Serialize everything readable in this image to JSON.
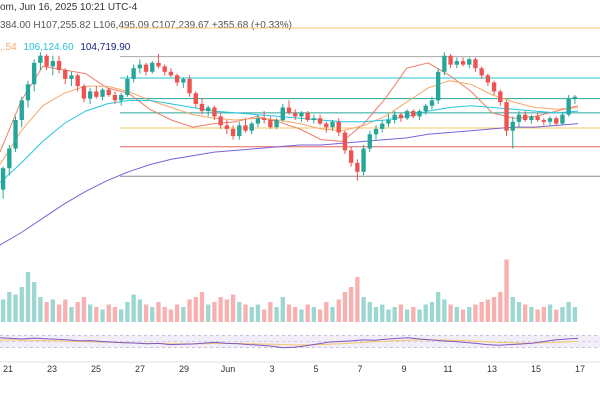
{
  "header": {
    "line1": "om, Jun 16, 2025 10:21 UTC-4",
    "ohlc": "384.00  H107,255.82  L106,495.09  C107,239.67  +355.68 (+0.33%)",
    "ma_prefix": ",.54",
    "ma_values": [
      {
        "text": "106,124.60",
        "color": "#26c6da"
      },
      {
        "text": "104,719.90",
        "color": "#1a237e"
      }
    ]
  },
  "colors": {
    "up": "#26a69a",
    "down": "#ef5350",
    "ma_fast": "#ef7d6b",
    "ma_mid": "#f5a86a",
    "ma_slow": "#26c6da",
    "ma_long": "#7b61d9",
    "rsi": "#7e57c2",
    "rsi_ma": "#f2c96a"
  },
  "chart_data": {
    "type": "candlestick",
    "title": "",
    "xlabel": "",
    "ylabel": "",
    "x_ticks": [
      "21",
      "23",
      "25",
      "27",
      "29",
      "Jun",
      "3",
      "5",
      "7",
      "9",
      "11",
      "13",
      "15",
      "17"
    ],
    "ylim": [
      99000,
      113000
    ],
    "horizontal_levels": [
      {
        "value": 112550,
        "color": "#f2c96a"
      },
      {
        "value": 110950,
        "color": "#aaaaaa"
      },
      {
        "value": 109750,
        "color": "#26c6da"
      },
      {
        "value": 108600,
        "color": "#26a69a"
      },
      {
        "value": 107800,
        "color": "#26a69a"
      },
      {
        "value": 106950,
        "color": "#f2c96a"
      },
      {
        "value": 105900,
        "color": "#e06666"
      },
      {
        "value": 104250,
        "color": "#888888"
      }
    ],
    "candles": [
      [
        103500,
        104800,
        103000,
        104700
      ],
      [
        104700,
        106000,
        104300,
        105800
      ],
      [
        105800,
        107600,
        105600,
        107400
      ],
      [
        107400,
        108700,
        107000,
        108500
      ],
      [
        108500,
        109600,
        108100,
        109400
      ],
      [
        109400,
        110800,
        109000,
        110600
      ],
      [
        110600,
        111200,
        110200,
        111000
      ],
      [
        111000,
        111100,
        110200,
        110400
      ],
      [
        110400,
        111000,
        109900,
        110700
      ],
      [
        110700,
        111000,
        110000,
        110200
      ],
      [
        110200,
        110300,
        109400,
        109700
      ],
      [
        109700,
        110100,
        109300,
        109900
      ],
      [
        109900,
        110000,
        109000,
        109300
      ],
      [
        109300,
        109400,
        108400,
        108600
      ],
      [
        108600,
        109200,
        108300,
        109000
      ],
      [
        109000,
        109300,
        108600,
        108700
      ],
      [
        108700,
        109200,
        108500,
        109100
      ],
      [
        109100,
        109200,
        108700,
        108800
      ],
      [
        108800,
        109000,
        108300,
        108500
      ],
      [
        108500,
        108900,
        108200,
        108800
      ],
      [
        108800,
        109900,
        108700,
        109700
      ],
      [
        109700,
        110500,
        109500,
        110300
      ],
      [
        110300,
        110800,
        110000,
        110500
      ],
      [
        110500,
        110600,
        109900,
        110100
      ],
      [
        110100,
        110700,
        110000,
        110600
      ],
      [
        110600,
        111100,
        110300,
        110400
      ],
      [
        110400,
        110500,
        109900,
        110100
      ],
      [
        110100,
        110300,
        109800,
        109900
      ],
      [
        109900,
        110000,
        109300,
        109500
      ],
      [
        109500,
        109800,
        109200,
        109700
      ],
      [
        109700,
        109900,
        108700,
        108900
      ],
      [
        108900,
        109000,
        108100,
        108300
      ],
      [
        108300,
        108600,
        107700,
        107900
      ],
      [
        107900,
        108200,
        107600,
        108100
      ],
      [
        108100,
        108200,
        107400,
        107600
      ],
      [
        107600,
        107800,
        106900,
        107100
      ],
      [
        107100,
        107400,
        106600,
        106900
      ],
      [
        106900,
        107100,
        106300,
        106500
      ],
      [
        106500,
        107300,
        106300,
        107100
      ],
      [
        107100,
        107500,
        106700,
        106800
      ],
      [
        106800,
        107300,
        106600,
        107200
      ],
      [
        107200,
        107700,
        107000,
        107500
      ],
      [
        107500,
        107900,
        107200,
        107400
      ],
      [
        107400,
        107600,
        106900,
        107000
      ],
      [
        107000,
        107500,
        106900,
        107400
      ],
      [
        107400,
        108300,
        107300,
        108100
      ],
      [
        108100,
        108500,
        107700,
        107800
      ],
      [
        107800,
        108000,
        107400,
        107600
      ],
      [
        107600,
        107900,
        107300,
        107800
      ],
      [
        107800,
        107900,
        107300,
        107400
      ],
      [
        107400,
        107700,
        107200,
        107500
      ],
      [
        107500,
        107700,
        107100,
        107200
      ],
      [
        107200,
        107300,
        106700,
        107000
      ],
      [
        107000,
        107400,
        106800,
        107300
      ],
      [
        107300,
        107500,
        106500,
        106700
      ],
      [
        106700,
        106800,
        105500,
        105700
      ],
      [
        105700,
        105900,
        104800,
        105000
      ],
      [
        105000,
        105200,
        104000,
        104500
      ],
      [
        104500,
        106000,
        104300,
        105800
      ],
      [
        105800,
        106800,
        105600,
        106600
      ],
      [
        106600,
        107100,
        106300,
        106900
      ],
      [
        106900,
        107400,
        106700,
        107200
      ],
      [
        107200,
        107700,
        107000,
        107400
      ],
      [
        107400,
        107900,
        107200,
        107700
      ],
      [
        107700,
        107800,
        107300,
        107500
      ],
      [
        107500,
        108000,
        107400,
        107900
      ],
      [
        107900,
        108000,
        107500,
        107600
      ],
      [
        107600,
        108000,
        107400,
        107900
      ],
      [
        107900,
        108300,
        107700,
        108200
      ],
      [
        108200,
        108700,
        108000,
        108500
      ],
      [
        108500,
        110300,
        108300,
        110100
      ],
      [
        110100,
        111200,
        109900,
        111000
      ],
      [
        111000,
        111100,
        110300,
        110500
      ],
      [
        110500,
        110900,
        110300,
        110700
      ],
      [
        110700,
        110900,
        110400,
        110500
      ],
      [
        110500,
        110900,
        110300,
        110800
      ],
      [
        110800,
        110900,
        110100,
        110300
      ],
      [
        110300,
        110400,
        109700,
        109900
      ],
      [
        109900,
        110000,
        109300,
        109500
      ],
      [
        109500,
        109600,
        108800,
        109000
      ],
      [
        109000,
        109100,
        108200,
        108400
      ],
      [
        108400,
        108500,
        106500,
        106800
      ],
      [
        106800,
        107600,
        105800,
        107300
      ],
      [
        107300,
        107900,
        107000,
        107700
      ],
      [
        107700,
        107900,
        107300,
        107400
      ],
      [
        107400,
        107700,
        107200,
        107600
      ],
      [
        107600,
        107800,
        107300,
        107400
      ],
      [
        107400,
        107500,
        107100,
        107300
      ],
      [
        107300,
        107600,
        107100,
        107500
      ],
      [
        107500,
        107600,
        107100,
        107200
      ],
      [
        107200,
        107800,
        107100,
        107700
      ],
      [
        107700,
        108800,
        107600,
        108600
      ],
      [
        108600,
        108800,
        108300,
        108700
      ]
    ],
    "moving_averages": [
      {
        "name": "",
        "color": "#ef7d6b",
        "values": [
          105600,
          108500,
          110400,
          110200,
          110000,
          109200,
          108900,
          108000,
          107400,
          107000,
          107200,
          107300,
          107600,
          107300,
          106900,
          106300,
          106200,
          107200,
          108600,
          110300,
          110600,
          109900,
          109000,
          107800,
          107500,
          107600,
          107900,
          108200
        ]
      },
      {
        "name": "",
        "color": "#f5a86a",
        "values": [
          104900,
          106800,
          108200,
          108900,
          109300,
          109300,
          109000,
          108500,
          108100,
          107700,
          107500,
          107400,
          107500,
          107400,
          107200,
          106900,
          106800,
          107100,
          107600,
          108400,
          109200,
          109600,
          109400,
          108800,
          108400,
          108100,
          108000,
          108100
        ]
      },
      {
        "name": "",
        "color": "#26c6da",
        "values": [
          103900,
          105000,
          106200,
          107200,
          107900,
          108300,
          108500,
          108500,
          108300,
          108100,
          107900,
          107800,
          107700,
          107600,
          107500,
          107400,
          107300,
          107300,
          107400,
          107600,
          107900,
          108100,
          108200,
          108100,
          108000,
          107900,
          107800,
          107900
        ]
      },
      {
        "name": "",
        "color": "#7b61d9",
        "values": [
          100400,
          101100,
          101900,
          102700,
          103400,
          104000,
          104500,
          104900,
          105200,
          105400,
          105600,
          105700,
          105800,
          105900,
          106000,
          106000,
          106100,
          106200,
          106300,
          106400,
          106600,
          106700,
          106800,
          106900,
          107000,
          107000,
          107100,
          107200
        ]
      }
    ],
    "volume": [
      9,
      12,
      11,
      14,
      20,
      16,
      10,
      8,
      9,
      7,
      9,
      6,
      8,
      10,
      7,
      6,
      5,
      7,
      6,
      5,
      8,
      11,
      9,
      7,
      6,
      8,
      6,
      5,
      7,
      6,
      9,
      10,
      12,
      7,
      8,
      10,
      9,
      11,
      8,
      7,
      6,
      7,
      5,
      8,
      6,
      10,
      7,
      6,
      5,
      7,
      6,
      5,
      8,
      6,
      9,
      12,
      14,
      18,
      10,
      8,
      6,
      7,
      5,
      6,
      7,
      5,
      6,
      5,
      7,
      8,
      12,
      9,
      7,
      6,
      5,
      6,
      7,
      8,
      9,
      10,
      12,
      25,
      10,
      8,
      7,
      6,
      5,
      6,
      7,
      5,
      6,
      8,
      6
    ],
    "volume_max": 30,
    "rsi": [
      62,
      60,
      58,
      61,
      59,
      57,
      55,
      52,
      53,
      50,
      48,
      46,
      45,
      43,
      44,
      40,
      41,
      42,
      45,
      47,
      44,
      43,
      40,
      38,
      35,
      30,
      32,
      36,
      42,
      48,
      50,
      52,
      55,
      54,
      57,
      60,
      62,
      58,
      55,
      52,
      50,
      47,
      44,
      40,
      38,
      40,
      42,
      45,
      50,
      55,
      58,
      60
    ],
    "rsi_ma": [
      55,
      55,
      54,
      54,
      53,
      52,
      51,
      50,
      49,
      48,
      47,
      46,
      45,
      44,
      44,
      43,
      43,
      43,
      43,
      44,
      44,
      44,
      43,
      42,
      41,
      40,
      39,
      39,
      40,
      41,
      43,
      45,
      47,
      49,
      51,
      53,
      54,
      55,
      55,
      55,
      54,
      53,
      51,
      49,
      47,
      46,
      45,
      45,
      46,
      47,
      49,
      51
    ],
    "rsi_range": [
      0,
      100
    ],
    "rsi_bands": [
      70,
      50,
      30
    ]
  }
}
